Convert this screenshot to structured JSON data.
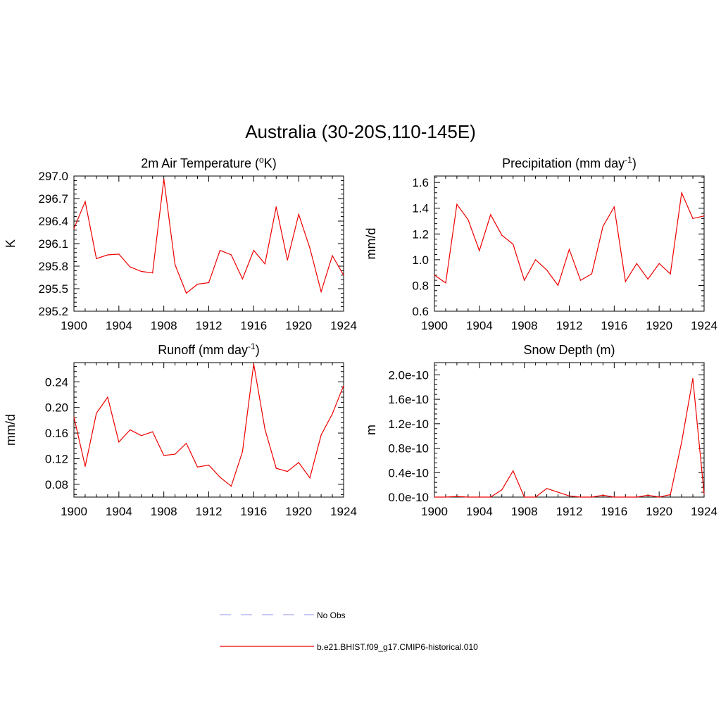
{
  "figure_title": "Australia (30-20S,110-145E)",
  "legend": [
    {
      "label": "No Obs",
      "color": "#aaaaee",
      "style": "dashed"
    },
    {
      "label": "b.e21.BHIST.f09_g17.CMIP6-historical.010",
      "color": "#ee0000",
      "style": "solid"
    }
  ],
  "chart_data": [
    {
      "type": "line",
      "title_main": "2m Air Temperature (",
      "title_sup": "o",
      "title_tail": "K)",
      "ylabel": "K",
      "xlim": [
        1900,
        1924
      ],
      "ylim": [
        295.2,
        297.0
      ],
      "xticks": [
        1900,
        1904,
        1908,
        1912,
        1916,
        1920,
        1924
      ],
      "yticks": [
        "295.2",
        "295.5",
        "295.8",
        "296.1",
        "296.4",
        "296.7",
        "297.0"
      ],
      "ytick_values": [
        295.2,
        295.5,
        295.8,
        296.1,
        296.4,
        296.7,
        297.0
      ],
      "series": [
        {
          "color": "#ee0000",
          "x": [
            1900,
            1901,
            1902,
            1903,
            1904,
            1905,
            1906,
            1907,
            1908,
            1909,
            1910,
            1911,
            1912,
            1913,
            1914,
            1915,
            1916,
            1917,
            1918,
            1919,
            1920,
            1921,
            1922,
            1923,
            1924
          ],
          "values": [
            296.3,
            296.66,
            295.9,
            295.95,
            295.96,
            295.79,
            295.73,
            295.71,
            296.96,
            295.82,
            295.44,
            295.56,
            295.58,
            296.01,
            295.95,
            295.63,
            296.01,
            295.83,
            296.59,
            295.88,
            296.49,
            296.04,
            295.46,
            295.94,
            295.68
          ]
        }
      ]
    },
    {
      "type": "line",
      "title_main": "Precipitation (mm day",
      "title_sup": "-1",
      "title_tail": ")",
      "ylabel": "mm/d",
      "xlim": [
        1900,
        1924
      ],
      "ylim": [
        0.6,
        1.65
      ],
      "xticks": [
        1900,
        1904,
        1908,
        1912,
        1916,
        1920,
        1924
      ],
      "yticks": [
        "0.6",
        "0.8",
        "1.0",
        "1.2",
        "1.4",
        "1.6"
      ],
      "ytick_values": [
        0.6,
        0.8,
        1.0,
        1.2,
        1.4,
        1.6
      ],
      "series": [
        {
          "color": "#ee0000",
          "x": [
            1900,
            1901,
            1902,
            1903,
            1904,
            1905,
            1906,
            1907,
            1908,
            1909,
            1910,
            1911,
            1912,
            1913,
            1914,
            1915,
            1916,
            1917,
            1918,
            1919,
            1920,
            1921,
            1922,
            1923,
            1924
          ],
          "values": [
            0.88,
            0.82,
            1.43,
            1.31,
            1.07,
            1.35,
            1.19,
            1.12,
            0.84,
            1.0,
            0.92,
            0.8,
            1.08,
            0.84,
            0.89,
            1.26,
            1.41,
            0.83,
            0.97,
            0.85,
            0.97,
            0.89,
            1.52,
            1.32,
            1.34
          ]
        }
      ]
    },
    {
      "type": "line",
      "title_main": "Runoff (mm day",
      "title_sup": "-1",
      "title_tail": ")",
      "ylabel": "mm/d",
      "xlim": [
        1900,
        1924
      ],
      "ylim": [
        0.06,
        0.27
      ],
      "xticks": [
        1900,
        1904,
        1908,
        1912,
        1916,
        1920,
        1924
      ],
      "yticks": [
        "0.08",
        "0.12",
        "0.16",
        "0.20",
        "0.24"
      ],
      "ytick_values": [
        0.08,
        0.12,
        0.16,
        0.2,
        0.24
      ],
      "series": [
        {
          "color": "#ee0000",
          "x": [
            1900,
            1901,
            1902,
            1903,
            1904,
            1905,
            1906,
            1907,
            1908,
            1909,
            1910,
            1911,
            1912,
            1913,
            1914,
            1915,
            1916,
            1917,
            1918,
            1919,
            1920,
            1921,
            1922,
            1923,
            1924
          ],
          "values": [
            0.185,
            0.108,
            0.191,
            0.216,
            0.146,
            0.165,
            0.156,
            0.162,
            0.125,
            0.127,
            0.144,
            0.107,
            0.11,
            0.091,
            0.077,
            0.131,
            0.268,
            0.166,
            0.105,
            0.1,
            0.114,
            0.09,
            0.157,
            0.19,
            0.234
          ]
        }
      ]
    },
    {
      "type": "line",
      "title_main": "Snow Depth (m)",
      "title_sup": "",
      "title_tail": "",
      "ylabel": "m",
      "xlim": [
        1900,
        1924
      ],
      "ylim": [
        0.0,
        2.2e-10
      ],
      "xticks": [
        1900,
        1904,
        1908,
        1912,
        1916,
        1920,
        1924
      ],
      "yticks": [
        "0.0e-10",
        "0.4e-10",
        "0.8e-10",
        "1.2e-10",
        "1.6e-10",
        "2.0e-10"
      ],
      "ytick_values": [
        0.0,
        4e-11,
        8e-11,
        1.2e-10,
        1.6e-10,
        2e-10
      ],
      "series": [
        {
          "color": "#ee0000",
          "x": [
            1900,
            1901,
            1902,
            1903,
            1904,
            1905,
            1906,
            1907,
            1908,
            1909,
            1910,
            1911,
            1912,
            1913,
            1914,
            1915,
            1916,
            1917,
            1918,
            1919,
            1920,
            1921,
            1922,
            1923,
            1924
          ],
          "values": [
            0,
            0,
            1e-12,
            0,
            0,
            0,
            1.2e-11,
            4.3e-11,
            0,
            0,
            1.4e-11,
            8e-12,
            2e-12,
            0,
            0,
            3e-12,
            0,
            0,
            0,
            3e-12,
            0,
            4e-12,
            9e-11,
            1.94e-10,
            5e-12
          ]
        }
      ]
    }
  ]
}
